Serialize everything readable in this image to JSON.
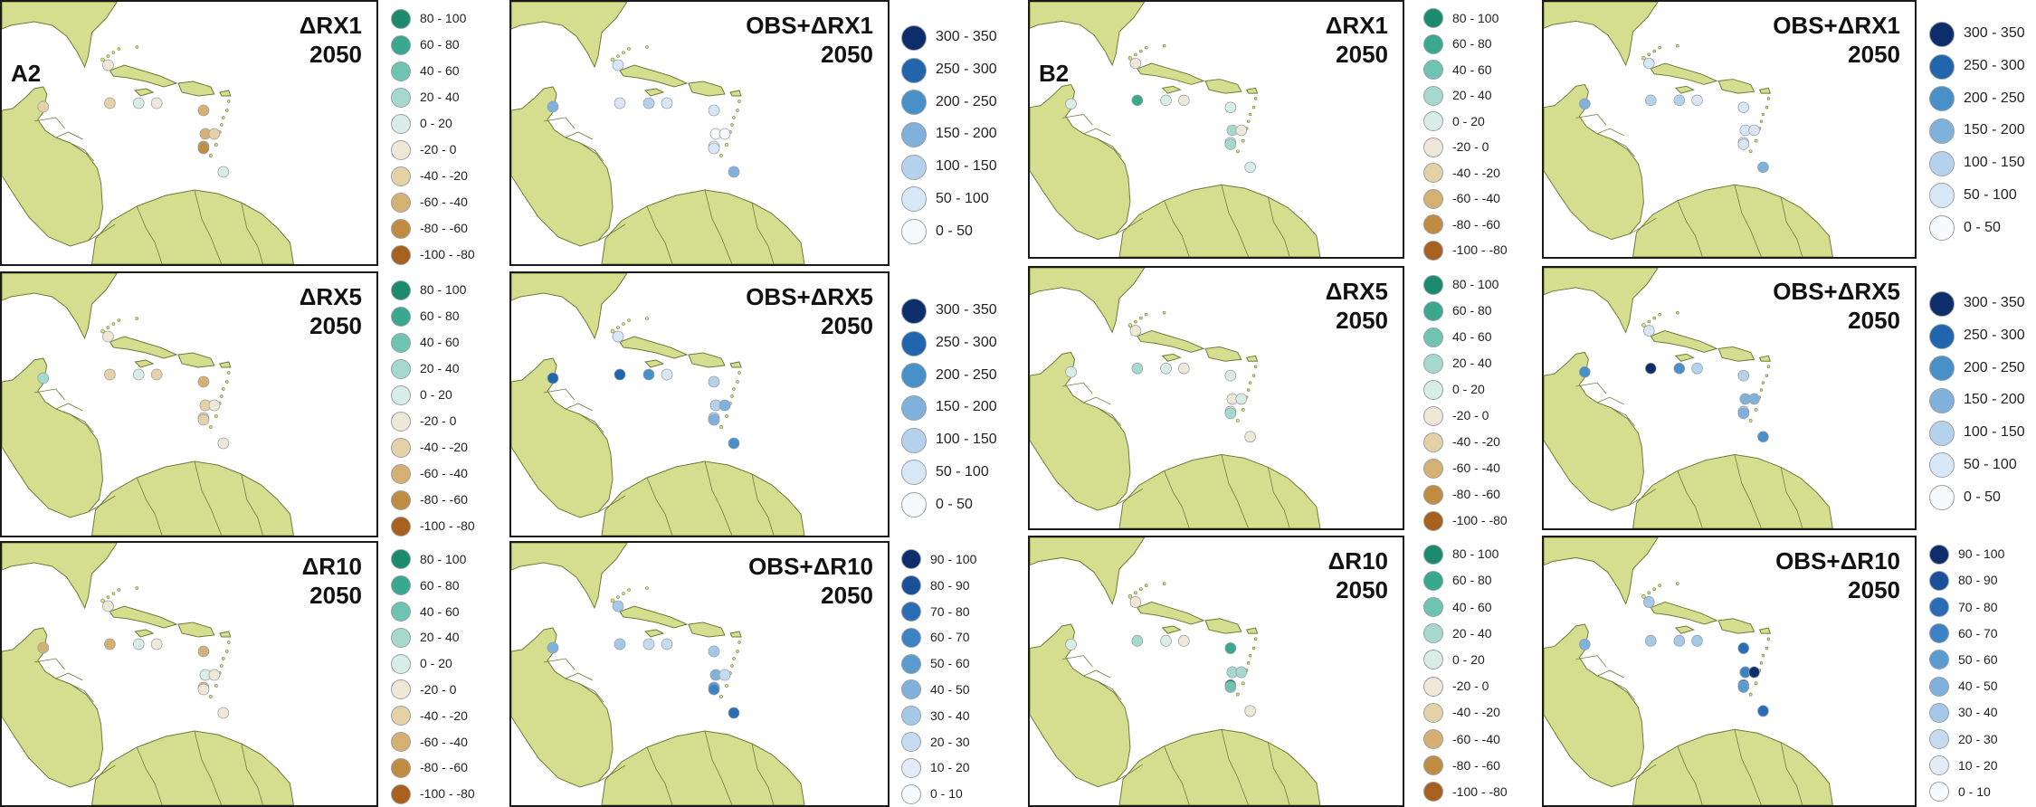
{
  "colors": {
    "land": "#d4de8e",
    "land_stroke": "#6e7a3a",
    "border_stroke": "#6e7a3a",
    "sea": "#ffffff",
    "marker_stroke": "#9aa0a8"
  },
  "scales": {
    "delta": {
      "labels": [
        "80 - 100",
        "60 - 80",
        "40 - 60",
        "20 - 40",
        "0 - 20",
        "-20 - 0",
        "-40 - -20",
        "-60 - -40",
        "-80 - -60",
        "-100 - -80"
      ],
      "colors": [
        "#1b8a6e",
        "#3aa88f",
        "#6fc3b1",
        "#a5d9cd",
        "#d8ede6",
        "#f0e8d6",
        "#e4d1a6",
        "#d6b072",
        "#c08c42",
        "#a7601e"
      ]
    },
    "obs_rx": {
      "labels": [
        "300 - 350",
        "250 - 300",
        "200 - 250",
        "150 - 200",
        "100 - 150",
        "50 - 100",
        "0 - 50"
      ],
      "colors": [
        "#0d2d6b",
        "#2166ac",
        "#4a90c8",
        "#7fb1da",
        "#b4d2ec",
        "#d8e7f5",
        "#f7fafd"
      ]
    },
    "obs_r10": {
      "labels": [
        "90 - 100",
        "80 - 90",
        "70 - 80",
        "60 - 70",
        "50 - 60",
        "40 - 50",
        "30 - 40",
        "20 - 30",
        "10 - 20",
        "0 - 10"
      ],
      "colors": [
        "#0d2d6b",
        "#1a4f9a",
        "#2a6db5",
        "#3d83c3",
        "#5a9bd0",
        "#7fb1da",
        "#a4c8e5",
        "#c5dbef",
        "#e1ecf7",
        "#f7fafd"
      ]
    }
  },
  "panels": [
    {
      "id": "a2-rx1",
      "title1": "ΔRX1",
      "title2": "2050",
      "scenario_label": "A2",
      "scale": "delta",
      "markers": [
        [
          1,
          5
        ],
        [
          2,
          6
        ],
        [
          3,
          6
        ],
        [
          4,
          4
        ],
        [
          5,
          5
        ],
        [
          6,
          7
        ],
        [
          7,
          7
        ],
        [
          8,
          8
        ],
        [
          9,
          6
        ],
        [
          10,
          8
        ],
        [
          11,
          4
        ]
      ]
    },
    {
      "id": "a2-obs-rx1",
      "title1": "OBS+ΔRX1",
      "title2": "2050",
      "scenario_label": "",
      "scale": "obs_rx",
      "markers": [
        [
          1,
          5
        ],
        [
          2,
          3
        ],
        [
          3,
          5
        ],
        [
          4,
          4
        ],
        [
          5,
          5
        ],
        [
          6,
          5
        ],
        [
          7,
          6
        ],
        [
          8,
          6
        ],
        [
          9,
          6
        ],
        [
          10,
          5
        ],
        [
          11,
          3
        ]
      ]
    },
    {
      "id": "b2-rx1",
      "title1": "ΔRX1",
      "title2": "2050",
      "scenario_label": "B2",
      "scale": "delta",
      "markers": [
        [
          1,
          5
        ],
        [
          2,
          4
        ],
        [
          3,
          1
        ],
        [
          4,
          4
        ],
        [
          5,
          5
        ],
        [
          6,
          4
        ],
        [
          7,
          3
        ],
        [
          8,
          4
        ],
        [
          9,
          5
        ],
        [
          10,
          3
        ],
        [
          11,
          4
        ]
      ]
    },
    {
      "id": "b2-obs-rx1",
      "title1": "OBS+ΔRX1",
      "title2": "2050",
      "scenario_label": "",
      "scale": "obs_rx",
      "markers": [
        [
          1,
          5
        ],
        [
          2,
          3
        ],
        [
          3,
          4
        ],
        [
          4,
          4
        ],
        [
          5,
          5
        ],
        [
          6,
          5
        ],
        [
          7,
          5
        ],
        [
          8,
          5
        ],
        [
          9,
          5
        ],
        [
          10,
          5
        ],
        [
          11,
          3
        ]
      ]
    },
    {
      "id": "a2-rx5",
      "title1": "ΔRX5",
      "title2": "2050",
      "scenario_label": "",
      "scale": "delta",
      "markers": [
        [
          1,
          5
        ],
        [
          2,
          3
        ],
        [
          3,
          6
        ],
        [
          4,
          4
        ],
        [
          5,
          6
        ],
        [
          6,
          7
        ],
        [
          7,
          6
        ],
        [
          8,
          6
        ],
        [
          9,
          5
        ],
        [
          10,
          6
        ],
        [
          11,
          5
        ]
      ]
    },
    {
      "id": "a2-obs-rx5",
      "title1": "OBS+ΔRX5",
      "title2": "2050",
      "scenario_label": "",
      "scale": "obs_rx",
      "markers": [
        [
          1,
          5
        ],
        [
          2,
          1
        ],
        [
          3,
          1
        ],
        [
          4,
          2
        ],
        [
          5,
          5
        ],
        [
          6,
          4
        ],
        [
          7,
          4
        ],
        [
          8,
          4
        ],
        [
          9,
          3
        ],
        [
          10,
          3
        ],
        [
          11,
          2
        ]
      ]
    },
    {
      "id": "b2-rx5",
      "title1": "ΔRX5",
      "title2": "2050",
      "scenario_label": "",
      "scale": "delta",
      "markers": [
        [
          1,
          5
        ],
        [
          2,
          4
        ],
        [
          3,
          3
        ],
        [
          4,
          4
        ],
        [
          5,
          5
        ],
        [
          6,
          4
        ],
        [
          7,
          5
        ],
        [
          8,
          5
        ],
        [
          9,
          4
        ],
        [
          10,
          3
        ],
        [
          11,
          5
        ]
      ]
    },
    {
      "id": "b2-obs-rx5",
      "title1": "OBS+ΔRX5",
      "title2": "2050",
      "scenario_label": "",
      "scale": "obs_rx",
      "markers": [
        [
          1,
          5
        ],
        [
          2,
          2
        ],
        [
          3,
          0
        ],
        [
          4,
          2
        ],
        [
          5,
          4
        ],
        [
          6,
          4
        ],
        [
          7,
          3
        ],
        [
          8,
          4
        ],
        [
          9,
          3
        ],
        [
          10,
          3
        ],
        [
          11,
          2
        ]
      ]
    },
    {
      "id": "a2-r10",
      "title1": "ΔR10",
      "title2": "2050",
      "scenario_label": "",
      "scale": "delta",
      "markers": [
        [
          1,
          5
        ],
        [
          2,
          7
        ],
        [
          3,
          7
        ],
        [
          4,
          4
        ],
        [
          5,
          5
        ],
        [
          6,
          7
        ],
        [
          7,
          4
        ],
        [
          8,
          7
        ],
        [
          9,
          5
        ],
        [
          10,
          5
        ],
        [
          11,
          5
        ]
      ]
    },
    {
      "id": "a2-obs-r10",
      "title1": "OBS+ΔR10",
      "title2": "2050",
      "scenario_label": "",
      "scale": "obs_r10",
      "markers": [
        [
          1,
          6
        ],
        [
          2,
          5
        ],
        [
          3,
          6
        ],
        [
          4,
          7
        ],
        [
          5,
          7
        ],
        [
          6,
          6
        ],
        [
          7,
          5
        ],
        [
          8,
          4
        ],
        [
          9,
          7
        ],
        [
          10,
          3
        ],
        [
          11,
          2
        ]
      ]
    },
    {
      "id": "b2-r10",
      "title1": "ΔR10",
      "title2": "2050",
      "scenario_label": "",
      "scale": "delta",
      "markers": [
        [
          1,
          5
        ],
        [
          2,
          4
        ],
        [
          3,
          3
        ],
        [
          4,
          4
        ],
        [
          5,
          5
        ],
        [
          6,
          1
        ],
        [
          7,
          3
        ],
        [
          8,
          0
        ],
        [
          9,
          3
        ],
        [
          10,
          2
        ],
        [
          11,
          5
        ]
      ]
    },
    {
      "id": "b2-obs-r10",
      "title1": "OBS+ΔR10",
      "title2": "2050",
      "scenario_label": "",
      "scale": "obs_r10",
      "markers": [
        [
          1,
          6
        ],
        [
          2,
          5
        ],
        [
          3,
          6
        ],
        [
          4,
          6
        ],
        [
          5,
          6
        ],
        [
          6,
          2
        ],
        [
          7,
          3
        ],
        [
          8,
          3
        ],
        [
          9,
          0
        ],
        [
          10,
          4
        ],
        [
          11,
          2
        ]
      ]
    }
  ]
}
